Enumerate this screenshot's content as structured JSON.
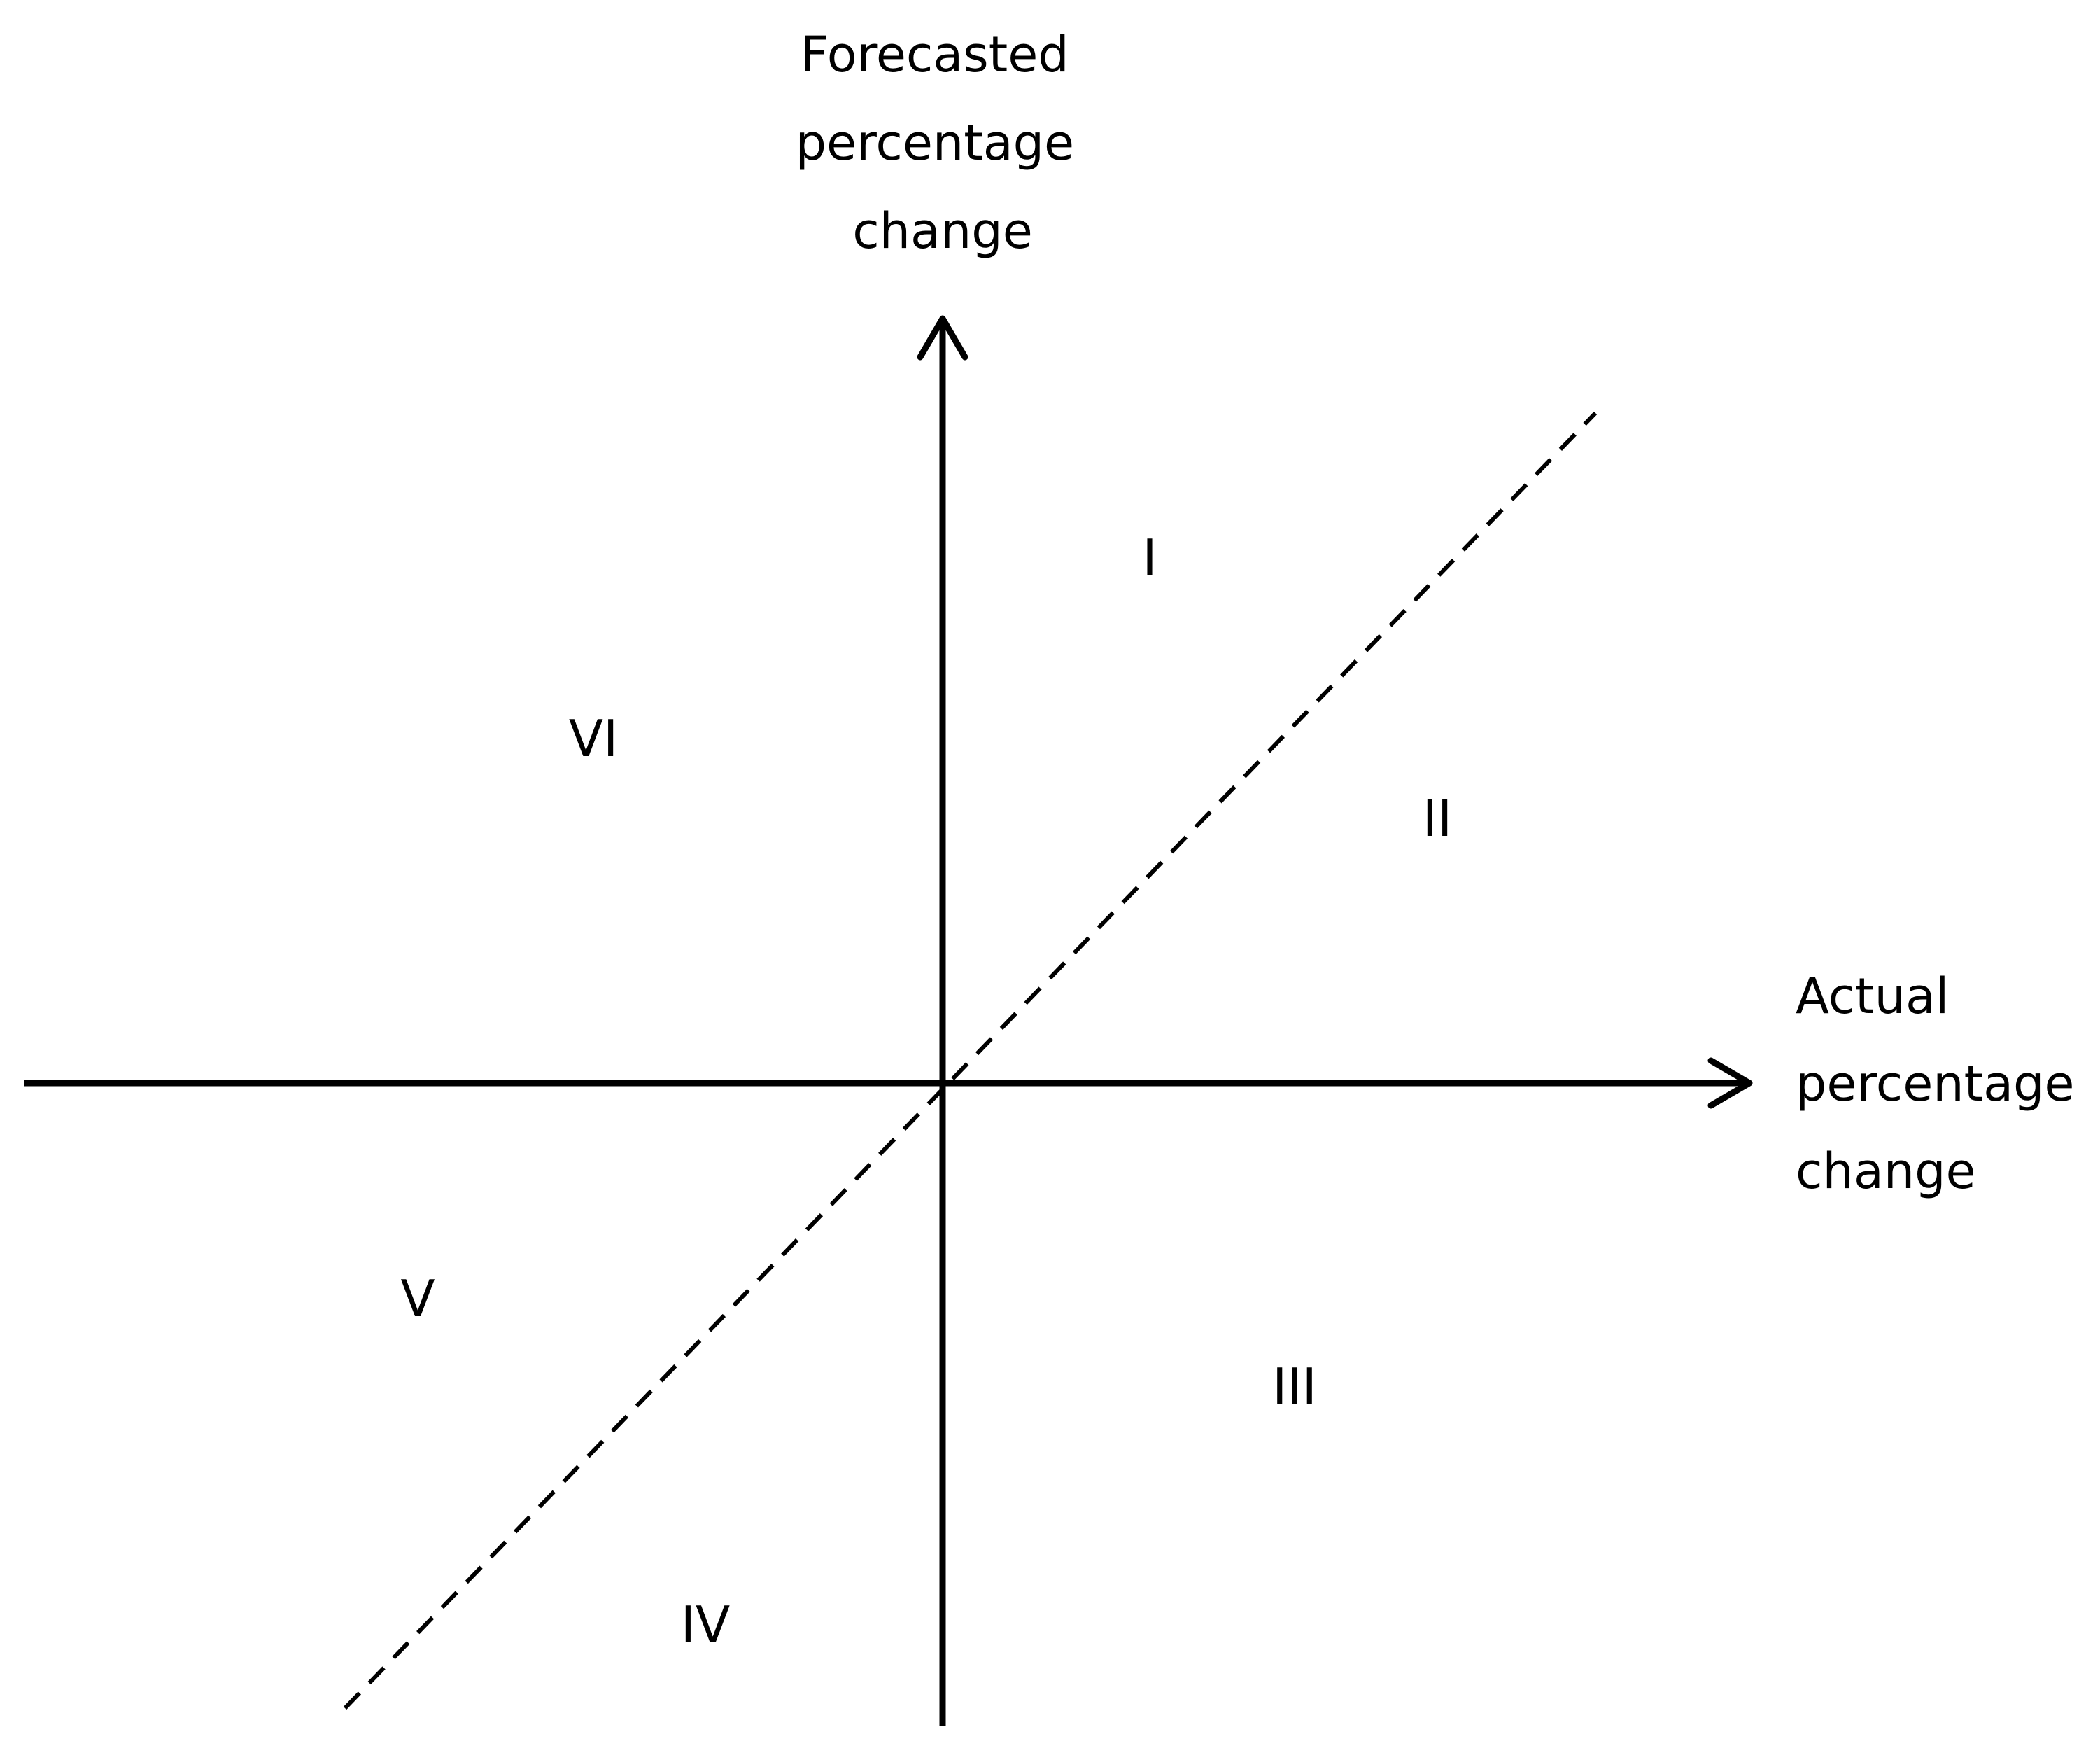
{
  "y_axis": {
    "label_lines": [
      "Forecasted",
      "percentage",
      "change"
    ]
  },
  "x_axis": {
    "label_lines": [
      "Actual",
      "percentage",
      "change"
    ]
  },
  "regions": [
    "I",
    "II",
    "III",
    "IV",
    "V",
    "VI"
  ]
}
